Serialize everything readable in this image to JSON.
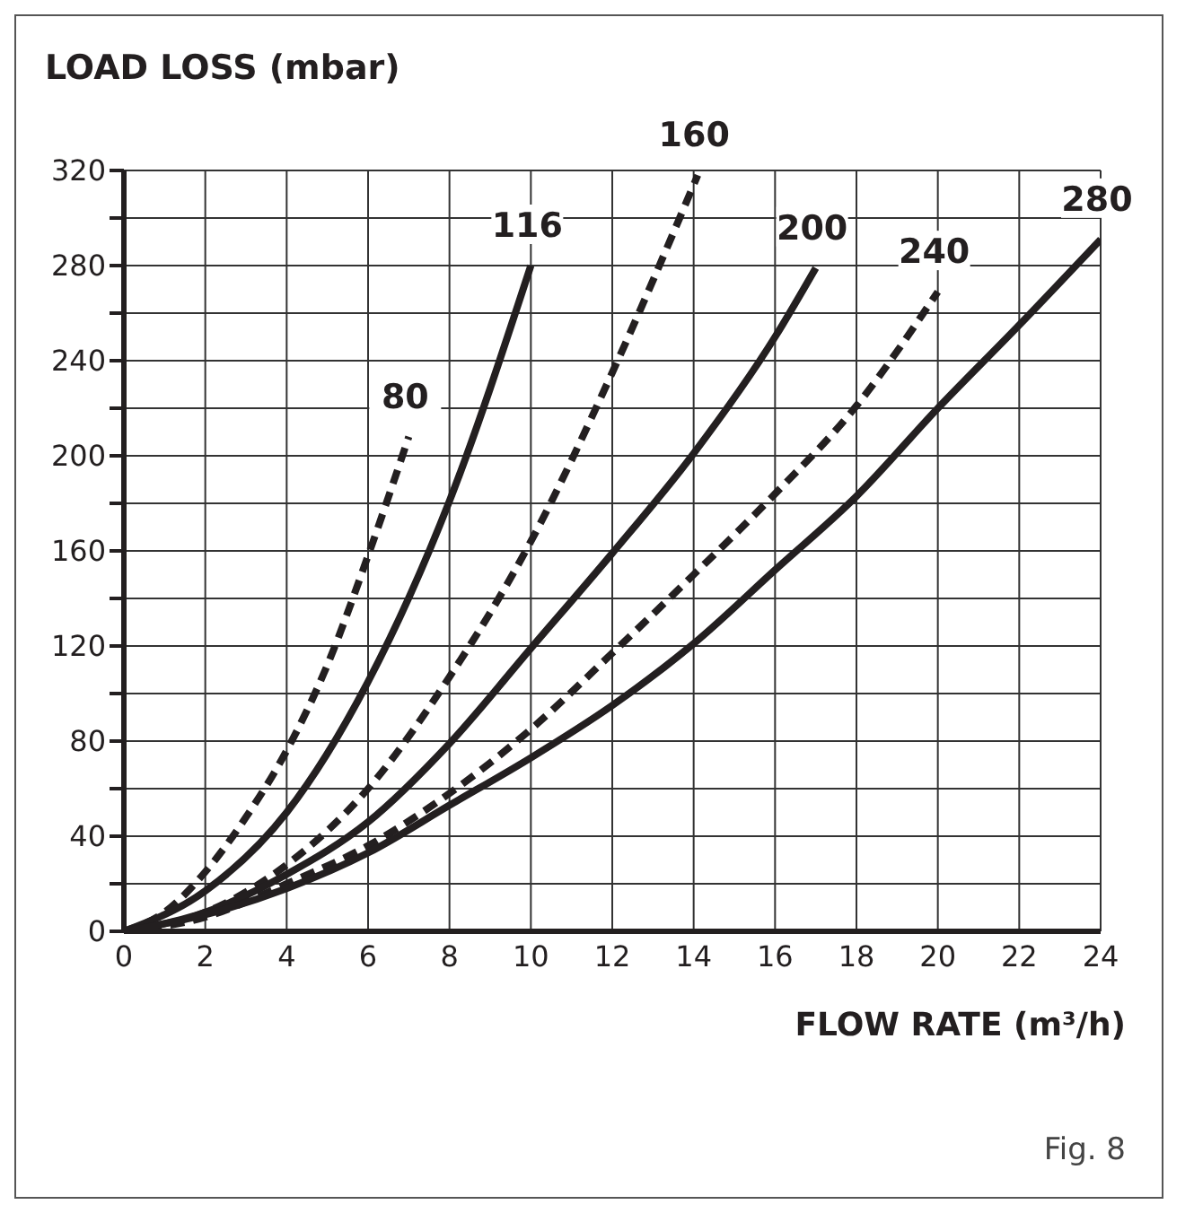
{
  "chart_data": {
    "type": "line",
    "ylabel": "LOAD LOSS (mbar)",
    "xlabel": "FLOW RATE (m³/h)",
    "annotations": [
      "Fig. 8"
    ],
    "xlim": [
      0,
      24
    ],
    "xticks": [
      0,
      2,
      4,
      6,
      8,
      10,
      12,
      14,
      16,
      18,
      20,
      22,
      24
    ],
    "ylim": [
      0,
      320
    ],
    "yticks": [
      0,
      {
        "value": 20,
        "label": null
      },
      40,
      {
        "value": 60,
        "label": null
      },
      80,
      {
        "value": 100,
        "label": null
      },
      120,
      {
        "value": 140,
        "label": null
      },
      160,
      {
        "value": 180,
        "label": null
      },
      200,
      {
        "value": 220,
        "label": null
      },
      240,
      {
        "value": 260,
        "label": null
      },
      280,
      {
        "value": 300,
        "label": null
      },
      320
    ],
    "grid": true,
    "legend": false,
    "marker": "none",
    "series": [
      {
        "name": "80",
        "color": "#231f20",
        "line_style": "dashed",
        "x": [
          0,
          1,
          2,
          3,
          4,
          5,
          6,
          7
        ],
        "values": [
          0,
          8,
          25,
          48,
          76,
          112,
          158,
          208
        ]
      },
      {
        "name": "116",
        "color": "#231f20",
        "line_style": "solid",
        "x": [
          0,
          2,
          4,
          6,
          8,
          10
        ],
        "values": [
          0,
          17,
          50,
          105,
          181,
          280
        ]
      },
      {
        "name": "160",
        "color": "#231f20",
        "line_style": "dashed",
        "x": [
          0,
          2,
          4,
          6,
          8,
          10,
          12,
          14.1
        ],
        "values": [
          0,
          8,
          28,
          60,
          107,
          164,
          235,
          318
        ]
      },
      {
        "name": "200",
        "color": "#231f20",
        "line_style": "solid",
        "x": [
          0,
          2,
          4,
          6,
          8,
          10,
          12,
          14,
          16,
          17
        ],
        "values": [
          0,
          8,
          24,
          46,
          79,
          119,
          159,
          201,
          250,
          279
        ]
      },
      {
        "name": "240",
        "color": "#231f20",
        "line_style": "dashed",
        "x": [
          0,
          2,
          4,
          6,
          8,
          10,
          12,
          14,
          16,
          18,
          20
        ],
        "values": [
          0,
          6,
          20,
          36,
          58,
          85,
          117,
          150,
          184,
          221,
          269
        ]
      },
      {
        "name": "280",
        "color": "#231f20",
        "line_style": "solid",
        "x": [
          0,
          2,
          4,
          6,
          8,
          10,
          12,
          14,
          16,
          18,
          20,
          22,
          24
        ],
        "values": [
          0,
          7,
          18,
          33,
          53,
          73,
          95,
          121,
          152,
          183,
          220,
          255,
          291
        ]
      }
    ]
  }
}
